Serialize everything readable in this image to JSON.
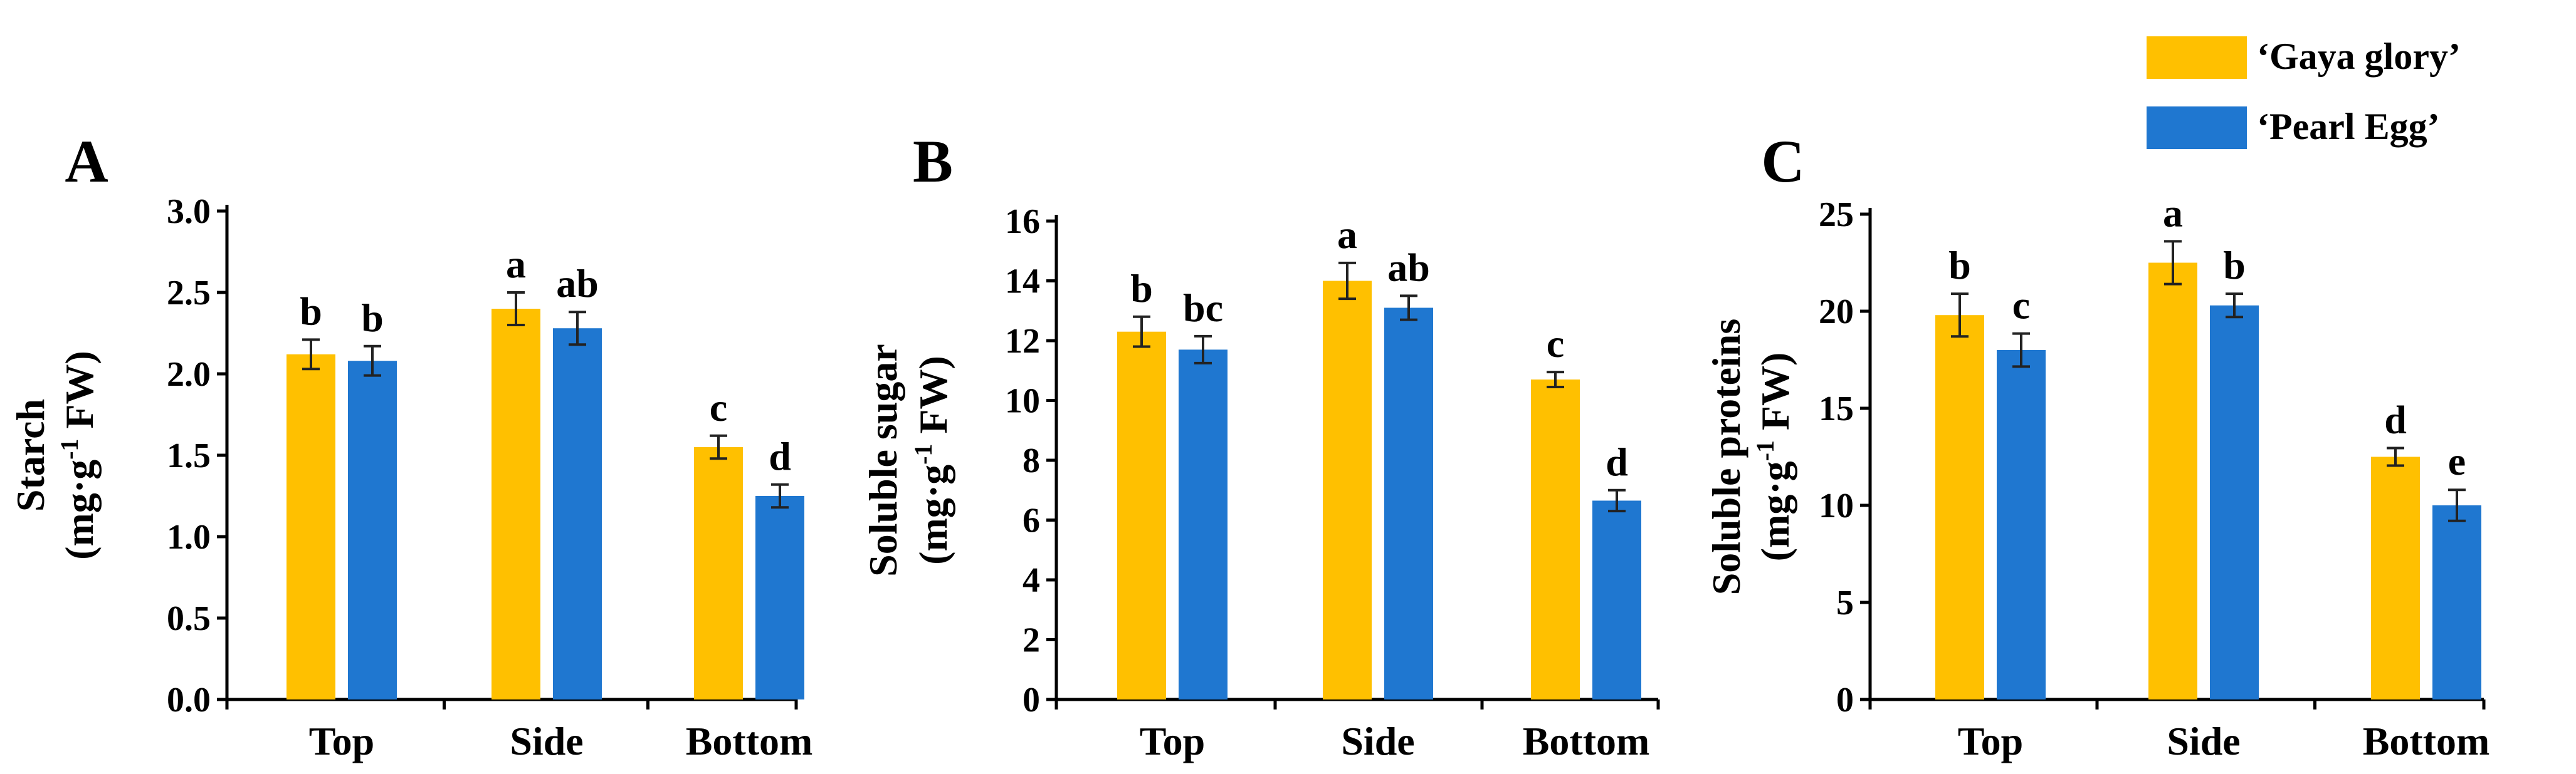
{
  "legend": {
    "entries": [
      {
        "label": "‘Gaya glory’",
        "color": "#FFC000"
      },
      {
        "label": "‘Pearl Egg’",
        "color": "#1F77D0"
      }
    ]
  },
  "chart_data": [
    {
      "type": "bar",
      "panel": "A",
      "categories": [
        "Top",
        "Side",
        "Bottom"
      ],
      "ylabel_line1": "Starch",
      "ylabel_line2_prefix": "(mg·g",
      "ylabel_line2_sup": "-1",
      "ylabel_line2_suffix": " FW)",
      "ylim": [
        0,
        3.0
      ],
      "yticks": [
        0.0,
        0.5,
        1.0,
        1.5,
        2.0,
        2.5,
        3.0
      ],
      "ytick_labels": [
        "0.0",
        "0.5",
        "1.0",
        "1.5",
        "2.0",
        "2.5",
        "3.0"
      ],
      "series": [
        {
          "name": "‘Gaya glory’",
          "color": "#FFC000",
          "values": [
            2.12,
            2.4,
            1.55
          ],
          "errors": [
            0.09,
            0.1,
            0.07
          ],
          "letters": [
            "b",
            "a",
            "c"
          ]
        },
        {
          "name": "‘Pearl Egg’",
          "color": "#1F77D0",
          "values": [
            2.08,
            2.28,
            1.25
          ],
          "errors": [
            0.09,
            0.1,
            0.07
          ],
          "letters": [
            "b",
            "ab",
            "d"
          ]
        }
      ]
    },
    {
      "type": "bar",
      "panel": "B",
      "categories": [
        "Top",
        "Side",
        "Bottom"
      ],
      "ylabel_line1": "Soluble sugar",
      "ylabel_line2_prefix": "(mg·g",
      "ylabel_line2_sup": "-1",
      "ylabel_line2_suffix": " FW)",
      "ylim": [
        0,
        16
      ],
      "yticks": [
        0,
        2,
        4,
        6,
        8,
        10,
        12,
        14,
        16
      ],
      "ytick_labels": [
        "0",
        "2",
        "4",
        "6",
        "8",
        "10",
        "12",
        "14",
        "16"
      ],
      "series": [
        {
          "name": "‘Gaya glory’",
          "color": "#FFC000",
          "values": [
            12.3,
            14.0,
            10.7
          ],
          "errors": [
            0.5,
            0.6,
            0.25
          ],
          "letters": [
            "b",
            "a",
            "c"
          ]
        },
        {
          "name": "‘Pearl Egg’",
          "color": "#1F77D0",
          "values": [
            11.7,
            13.1,
            6.65
          ],
          "errors": [
            0.45,
            0.4,
            0.35
          ],
          "letters": [
            "bc",
            "ab",
            "d"
          ]
        }
      ]
    },
    {
      "type": "bar",
      "panel": "C",
      "categories": [
        "Top",
        "Side",
        "Bottom"
      ],
      "ylabel_line1": "Soluble proteins",
      "ylabel_line2_prefix": "(mg·g",
      "ylabel_line2_sup": "-1",
      "ylabel_line2_suffix": " FW)",
      "ylim": [
        0,
        25
      ],
      "yticks": [
        0,
        5,
        10,
        15,
        20,
        25
      ],
      "ytick_labels": [
        "0",
        "5",
        "10",
        "15",
        "20",
        "25"
      ],
      "series": [
        {
          "name": "‘Gaya glory’",
          "color": "#FFC000",
          "values": [
            19.8,
            22.5,
            12.5
          ],
          "errors": [
            1.1,
            1.1,
            0.45
          ],
          "letters": [
            "b",
            "a",
            "d"
          ]
        },
        {
          "name": "‘Pearl Egg’",
          "color": "#1F77D0",
          "values": [
            18.0,
            20.3,
            10.0
          ],
          "errors": [
            0.85,
            0.6,
            0.8
          ],
          "letters": [
            "c",
            "b",
            "e"
          ]
        }
      ]
    }
  ]
}
